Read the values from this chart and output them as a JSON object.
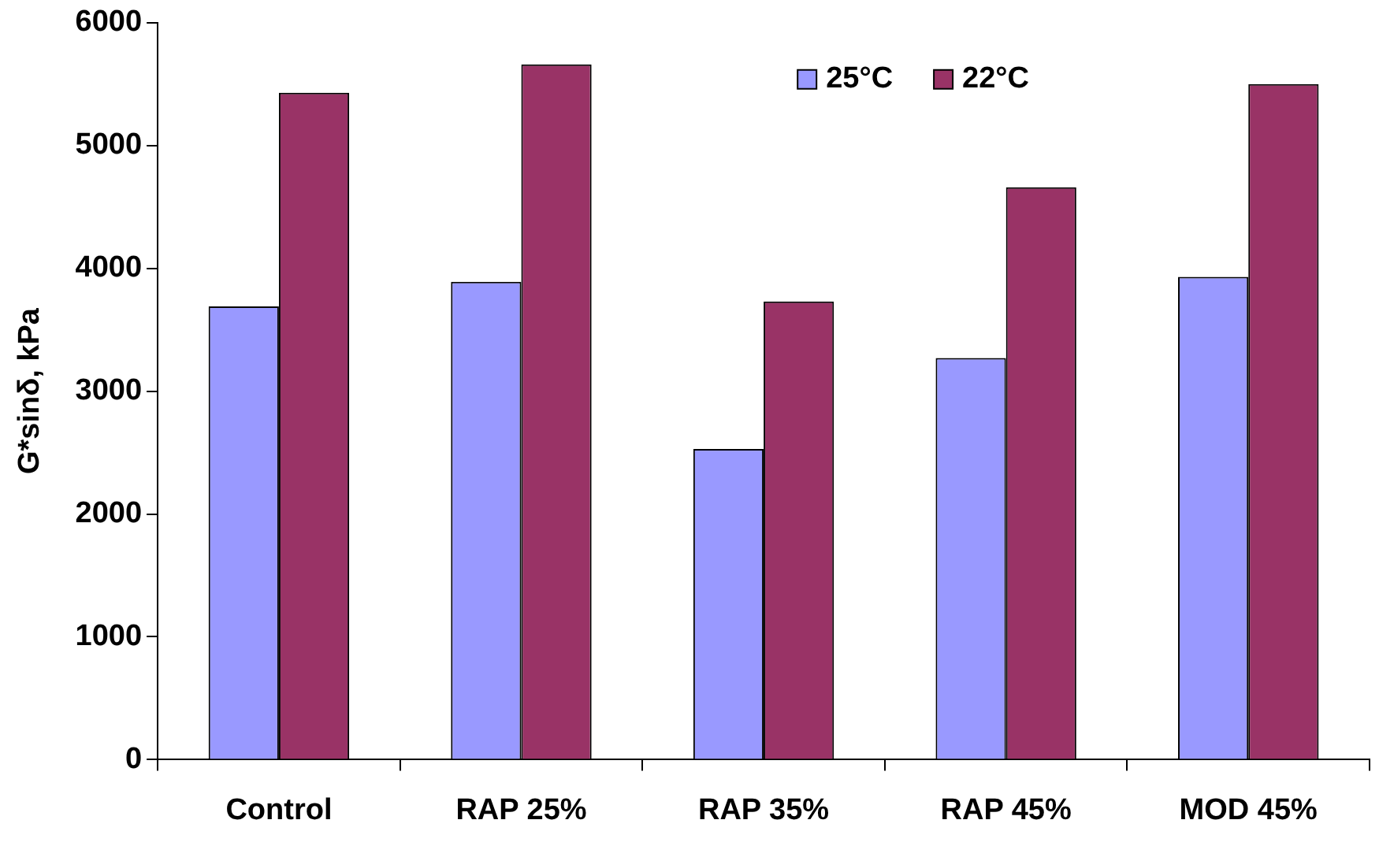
{
  "chart_data": {
    "type": "bar",
    "ylabel": "G*sinδ, kPa",
    "categories": [
      "Control",
      "RAP 25%",
      "RAP 35%",
      "RAP 45%",
      "MOD 45%"
    ],
    "series": [
      {
        "name": "25°C",
        "color": "#9999ff",
        "values": [
          3690,
          3890,
          2530,
          3270,
          3930
        ]
      },
      {
        "name": "22°C",
        "color": "#993366",
        "values": [
          5430,
          5660,
          3730,
          4660,
          5500
        ]
      }
    ],
    "ylim": [
      0,
      6000
    ],
    "yticks": [
      0,
      1000,
      2000,
      3000,
      4000,
      5000,
      6000
    ],
    "grid": false,
    "legend": "top right"
  }
}
